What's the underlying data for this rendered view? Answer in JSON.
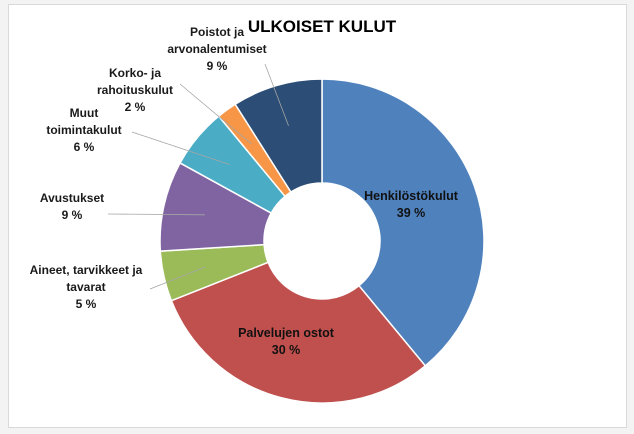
{
  "chart_data": {
    "type": "pie",
    "title": "ULKOISET KULUT",
    "slices": [
      {
        "label_lines": [
          "Henkilöstökulut"
        ],
        "value_label": "39 %",
        "value": 39,
        "color": "#4f81bd"
      },
      {
        "label_lines": [
          "Palvelujen ostot"
        ],
        "value_label": "30 %",
        "value": 30,
        "color": "#c0504d"
      },
      {
        "label_lines": [
          "Aineet, tarvikkeet ja",
          "tavarat"
        ],
        "value_label": "5 %",
        "value": 5,
        "color": "#9bbb59"
      },
      {
        "label_lines": [
          "Avustukset"
        ],
        "value_label": "9 %",
        "value": 9,
        "color": "#8064a2"
      },
      {
        "label_lines": [
          "Muut",
          "toimintakulut"
        ],
        "value_label": "6 %",
        "value": 6,
        "color": "#4bacc6"
      },
      {
        "label_lines": [
          "Korko- ja",
          "rahoituskulut"
        ],
        "value_label": "2 %",
        "value": 2,
        "color": "#f79646"
      },
      {
        "label_lines": [
          "Poistot ja",
          "arvonalentumiset"
        ],
        "value_label": "9 %",
        "value": 9,
        "color": "#2c4d75"
      }
    ],
    "legend": "none"
  }
}
